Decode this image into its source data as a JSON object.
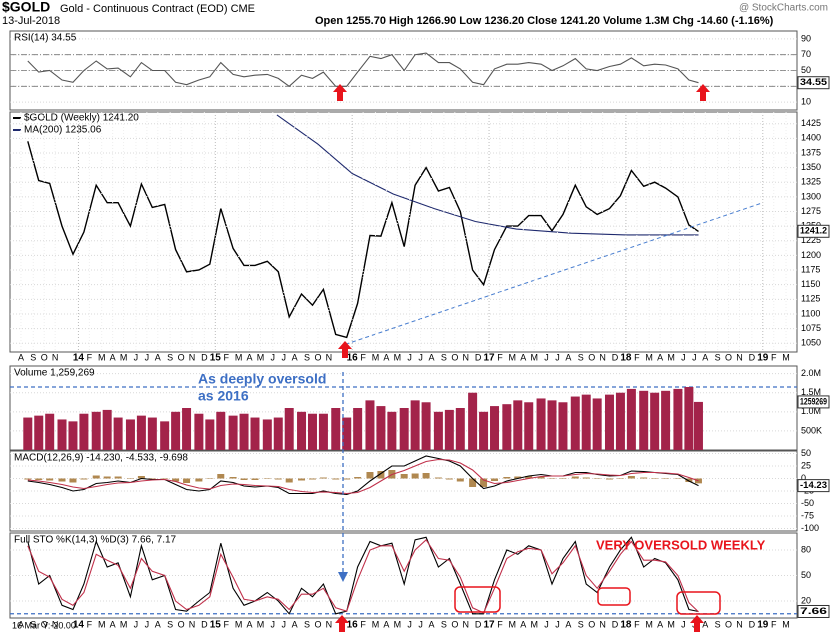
{
  "header": {
    "symbol": "$GOLD",
    "name": "Gold - Continuous Contract (EOD) CME",
    "date": "13-Jul-2018",
    "quote": "Open 1255.70  High 1266.90  Low 1236.20  Close 1241.20  Volume 1.3M  Chg -14.60 (-1.16%)",
    "source": "@ StockCharts.com"
  },
  "chart_data": [
    {
      "type": "line",
      "title": "RSI(14) 34.55",
      "ylim": [
        0,
        100
      ],
      "yticks": [
        10,
        30,
        50,
        70,
        90
      ],
      "ref_lines": [
        30,
        50,
        70
      ],
      "last_label": "34.55",
      "last_value": 34.55,
      "series": [
        {
          "color": "#555555",
          "values": [
            62,
            48,
            50,
            38,
            35,
            50,
            62,
            52,
            53,
            42,
            60,
            50,
            50,
            35,
            32,
            38,
            42,
            60,
            45,
            42,
            44,
            45,
            40,
            30,
            44,
            40,
            48,
            30,
            30,
            48,
            68,
            65,
            70,
            50,
            70,
            72,
            60,
            60,
            52,
            35,
            32,
            52,
            58,
            58,
            60,
            58,
            50,
            56,
            65,
            52,
            50,
            55,
            58,
            66,
            56,
            58,
            57,
            52,
            38,
            34.55
          ]
        }
      ]
    },
    {
      "type": "line",
      "xlim": [
        2013.5,
        2019.25
      ],
      "x": [
        2013.63,
        2013.71,
        2013.79,
        2013.88,
        2013.96,
        2014.04,
        2014.13,
        2014.21,
        2014.29,
        2014.38,
        2014.46,
        2014.54,
        2014.63,
        2014.71,
        2014.79,
        2014.88,
        2014.96,
        2015.04,
        2015.13,
        2015.21,
        2015.29,
        2015.38,
        2015.46,
        2015.54,
        2015.63,
        2015.71,
        2015.79,
        2015.88,
        2015.96,
        2016.04,
        2016.13,
        2016.21,
        2016.29,
        2016.38,
        2016.46,
        2016.54,
        2016.63,
        2016.71,
        2016.79,
        2016.88,
        2016.96,
        2017.04,
        2017.13,
        2017.21,
        2017.29,
        2017.38,
        2017.46,
        2017.54,
        2017.63,
        2017.71,
        2017.79,
        2017.88,
        2017.96,
        2018.04,
        2018.13,
        2018.21,
        2018.29,
        2018.38,
        2018.46,
        2018.53
      ],
      "xticks": [
        {
          "value": 2013.58,
          "label": "A"
        },
        {
          "value": 2013.67,
          "label": "S"
        },
        {
          "value": 2013.75,
          "label": "O"
        },
        {
          "value": 2013.83,
          "label": "N"
        },
        {
          "value": 2014,
          "label": "14"
        },
        {
          "value": 2014.08,
          "label": "F"
        },
        {
          "value": 2014.17,
          "label": "M"
        },
        {
          "value": 2014.25,
          "label": "A"
        },
        {
          "value": 2014.33,
          "label": "M"
        },
        {
          "value": 2014.42,
          "label": "J"
        },
        {
          "value": 2014.5,
          "label": "J"
        },
        {
          "value": 2014.58,
          "label": "A"
        },
        {
          "value": 2014.67,
          "label": "S"
        },
        {
          "value": 2014.75,
          "label": "O"
        },
        {
          "value": 2014.83,
          "label": "N"
        },
        {
          "value": 2014.92,
          "label": "D"
        },
        {
          "value": 2015,
          "label": "15"
        },
        {
          "value": 2015.08,
          "label": "F"
        },
        {
          "value": 2015.17,
          "label": "M"
        },
        {
          "value": 2015.25,
          "label": "A"
        },
        {
          "value": 2015.33,
          "label": "M"
        },
        {
          "value": 2015.42,
          "label": "J"
        },
        {
          "value": 2015.5,
          "label": "J"
        },
        {
          "value": 2015.58,
          "label": "A"
        },
        {
          "value": 2015.67,
          "label": "S"
        },
        {
          "value": 2015.75,
          "label": "O"
        },
        {
          "value": 2015.83,
          "label": "N"
        },
        {
          "value": 2016,
          "label": "16"
        },
        {
          "value": 2016.08,
          "label": "F"
        },
        {
          "value": 2016.17,
          "label": "M"
        },
        {
          "value": 2016.25,
          "label": "A"
        },
        {
          "value": 2016.33,
          "label": "M"
        },
        {
          "value": 2016.42,
          "label": "J"
        },
        {
          "value": 2016.5,
          "label": "J"
        },
        {
          "value": 2016.58,
          "label": "A"
        },
        {
          "value": 2016.67,
          "label": "S"
        },
        {
          "value": 2016.75,
          "label": "O"
        },
        {
          "value": 2016.83,
          "label": "N"
        },
        {
          "value": 2016.92,
          "label": "D"
        },
        {
          "value": 2017,
          "label": "17"
        },
        {
          "value": 2017.08,
          "label": "F"
        },
        {
          "value": 2017.17,
          "label": "M"
        },
        {
          "value": 2017.25,
          "label": "A"
        },
        {
          "value": 2017.33,
          "label": "M"
        },
        {
          "value": 2017.42,
          "label": "J"
        },
        {
          "value": 2017.5,
          "label": "J"
        },
        {
          "value": 2017.58,
          "label": "A"
        },
        {
          "value": 2017.67,
          "label": "S"
        },
        {
          "value": 2017.75,
          "label": "O"
        },
        {
          "value": 2017.83,
          "label": "N"
        },
        {
          "value": 2017.92,
          "label": "D"
        },
        {
          "value": 2018,
          "label": "18"
        },
        {
          "value": 2018.08,
          "label": "F"
        },
        {
          "value": 2018.17,
          "label": "M"
        },
        {
          "value": 2018.25,
          "label": "A"
        },
        {
          "value": 2018.33,
          "label": "M"
        },
        {
          "value": 2018.42,
          "label": "J"
        },
        {
          "value": 2018.5,
          "label": "J"
        },
        {
          "value": 2018.58,
          "label": "A"
        },
        {
          "value": 2018.67,
          "label": "S"
        },
        {
          "value": 2018.75,
          "label": "O"
        },
        {
          "value": 2018.83,
          "label": "N"
        },
        {
          "value": 2018.92,
          "label": "D"
        },
        {
          "value": 2019,
          "label": "19"
        },
        {
          "value": 2019.08,
          "label": "F"
        },
        {
          "value": 2019.17,
          "label": "M"
        }
      ],
      "ylim": [
        1035,
        1445
      ],
      "yticks": [
        1050,
        1075,
        1100,
        1125,
        1150,
        1175,
        1200,
        1225,
        1250,
        1275,
        1300,
        1325,
        1350,
        1375,
        1400,
        1425
      ],
      "grid": true,
      "last_label": "1241.2",
      "last_value": 1241.2,
      "series": [
        {
          "name": "$GOLD (Weekly) 1241.20",
          "color": "#000000",
          "values": [
            1395,
            1328,
            1323,
            1250,
            1202,
            1240,
            1320,
            1290,
            1290,
            1250,
            1322,
            1282,
            1287,
            1210,
            1172,
            1175,
            1185,
            1280,
            1212,
            1183,
            1183,
            1190,
            1172,
            1095,
            1134,
            1115,
            1142,
            1065,
            1060,
            1118,
            1234,
            1233,
            1290,
            1215,
            1320,
            1350,
            1310,
            1316,
            1275,
            1175,
            1150,
            1210,
            1250,
            1250,
            1268,
            1268,
            1242,
            1270,
            1320,
            1283,
            1270,
            1280,
            1302,
            1345,
            1318,
            1325,
            1315,
            1300,
            1252,
            1241
          ]
        },
        {
          "name": "MA(200) 1235.06",
          "color": "#1f2a6e",
          "x": [
            2015.45,
            2015.75,
            2016.0,
            2016.3,
            2016.6,
            2016.9,
            2017.2,
            2017.6,
            2018.0,
            2018.3,
            2018.53
          ],
          "values": [
            1440,
            1390,
            1340,
            1305,
            1280,
            1258,
            1245,
            1238,
            1235,
            1235,
            1235.06
          ]
        }
      ],
      "trendline": {
        "color": "#4a7fd0",
        "x": [
          2015.95,
          2019.0
        ],
        "values": [
          1048,
          1290
        ]
      }
    },
    {
      "type": "bar",
      "title": "Volume 1,259,269",
      "ylim": [
        0,
        2200000
      ],
      "yticks": [
        {
          "value": 500000,
          "label": "500K"
        },
        {
          "value": 1000000,
          "label": "1.0M"
        },
        {
          "value": 1500000,
          "label": "1.5M"
        },
        {
          "value": 2000000,
          "label": "2.0M"
        }
      ],
      "ref_lines": [
        1650000
      ],
      "last_label": "1259269",
      "last_value": 1259269,
      "annotation": [
        "As deeply oversold",
        "as 2016"
      ],
      "series": [
        {
          "color": "#a3234a",
          "values": [
            850000,
            900000,
            950000,
            800000,
            750000,
            950000,
            1000000,
            1050000,
            850000,
            800000,
            900000,
            850000,
            750000,
            1000000,
            1100000,
            950000,
            800000,
            1000000,
            900000,
            950000,
            850000,
            800000,
            850000,
            1100000,
            1000000,
            950000,
            950000,
            1100000,
            850000,
            1100000,
            1300000,
            1150000,
            1000000,
            1100000,
            1300000,
            1250000,
            1000000,
            1050000,
            1100000,
            1500000,
            1000000,
            1150000,
            1200000,
            1300000,
            1250000,
            1350000,
            1300000,
            1250000,
            1400000,
            1450000,
            1350000,
            1450000,
            1500000,
            1600000,
            1550000,
            1500000,
            1550000,
            1600000,
            1650000,
            1259269
          ]
        }
      ]
    },
    {
      "type": "line",
      "title": "MACD(12,26,9) -14.230, -4.533, -9.698",
      "ylim": [
        -105,
        55
      ],
      "yticks": [
        -100,
        -75,
        -50,
        -25,
        0,
        25,
        50
      ],
      "last_label": "-14.23",
      "last_value": -14.23,
      "histogram": {
        "color": "#b08850",
        "values": [
          -2,
          -3,
          -4,
          -6,
          -8,
          -2,
          6,
          4,
          4,
          0,
          5,
          1,
          0,
          -6,
          -9,
          -6,
          -1,
          9,
          3,
          -3,
          -3,
          0,
          -2,
          -8,
          -4,
          -2,
          2,
          -2,
          -2,
          3,
          13,
          15,
          17,
          9,
          10,
          11,
          2,
          -2,
          -6,
          -17,
          -17,
          -5,
          3,
          4,
          5,
          4,
          0,
          0,
          4,
          2,
          -1,
          -2,
          0,
          5,
          2,
          0,
          -1,
          -1,
          -7,
          -9.698
        ]
      },
      "series": [
        {
          "color": "#000000",
          "values": [
            -5,
            -8,
            -12,
            -18,
            -25,
            -22,
            -10,
            -8,
            -5,
            -8,
            0,
            -2,
            -2,
            -12,
            -22,
            -25,
            -22,
            -5,
            -8,
            -15,
            -17,
            -15,
            -18,
            -30,
            -30,
            -30,
            -25,
            -30,
            -32,
            -25,
            -5,
            10,
            25,
            25,
            35,
            45,
            40,
            35,
            25,
            0,
            -20,
            -15,
            -5,
            0,
            5,
            8,
            5,
            5,
            12,
            12,
            8,
            5,
            6,
            15,
            14,
            12,
            10,
            8,
            -5,
            -14.23
          ]
        },
        {
          "color": "#c0304a",
          "values": [
            -3,
            -5,
            -8,
            -12,
            -17,
            -20,
            -16,
            -12,
            -9,
            -8,
            -5,
            -3,
            -2,
            -6,
            -13,
            -19,
            -21,
            -14,
            -11,
            -12,
            -14,
            -15,
            -16,
            -22,
            -26,
            -28,
            -27,
            -28,
            -30,
            -28,
            -18,
            -5,
            8,
            16,
            25,
            34,
            38,
            37,
            31,
            17,
            -3,
            -10,
            -8,
            -4,
            0,
            4,
            5,
            5,
            8,
            10,
            9,
            7,
            6,
            10,
            12,
            12,
            11,
            9,
            2,
            -4.533
          ]
        }
      ]
    },
    {
      "type": "line",
      "title": "Full STO %K(14,3) %D(3) 7.66, 7.17",
      "ylim": [
        0,
        100
      ],
      "yticks": [
        20,
        50,
        80
      ],
      "ref_lines": [
        5
      ],
      "last_label": "7.66",
      "last_value": 7.66,
      "annotation": "VERY OVERSOLD WEEKLY",
      "cursor_label": "16 Mar Y:-20.00",
      "series": [
        {
          "color": "#000000",
          "values": [
            90,
            40,
            50,
            15,
            10,
            40,
            90,
            60,
            65,
            25,
            85,
            45,
            50,
            10,
            8,
            20,
            30,
            88,
            35,
            15,
            20,
            30,
            20,
            5,
            35,
            25,
            40,
            5,
            8,
            60,
            90,
            85,
            88,
            40,
            92,
            95,
            60,
            70,
            40,
            5,
            5,
            45,
            80,
            75,
            85,
            80,
            40,
            70,
            90,
            40,
            30,
            60,
            80,
            95,
            60,
            70,
            65,
            45,
            10,
            7.66
          ]
        },
        {
          "color": "#c0304a",
          "values": [
            85,
            55,
            48,
            22,
            15,
            30,
            75,
            68,
            62,
            35,
            70,
            55,
            50,
            20,
            10,
            15,
            25,
            75,
            48,
            22,
            20,
            25,
            22,
            10,
            28,
            28,
            35,
            12,
            8,
            45,
            80,
            85,
            85,
            55,
            80,
            92,
            70,
            68,
            48,
            12,
            6,
            35,
            70,
            78,
            82,
            80,
            52,
            65,
            85,
            50,
            35,
            55,
            75,
            90,
            68,
            68,
            66,
            50,
            18,
            7.17
          ]
        }
      ]
    }
  ]
}
